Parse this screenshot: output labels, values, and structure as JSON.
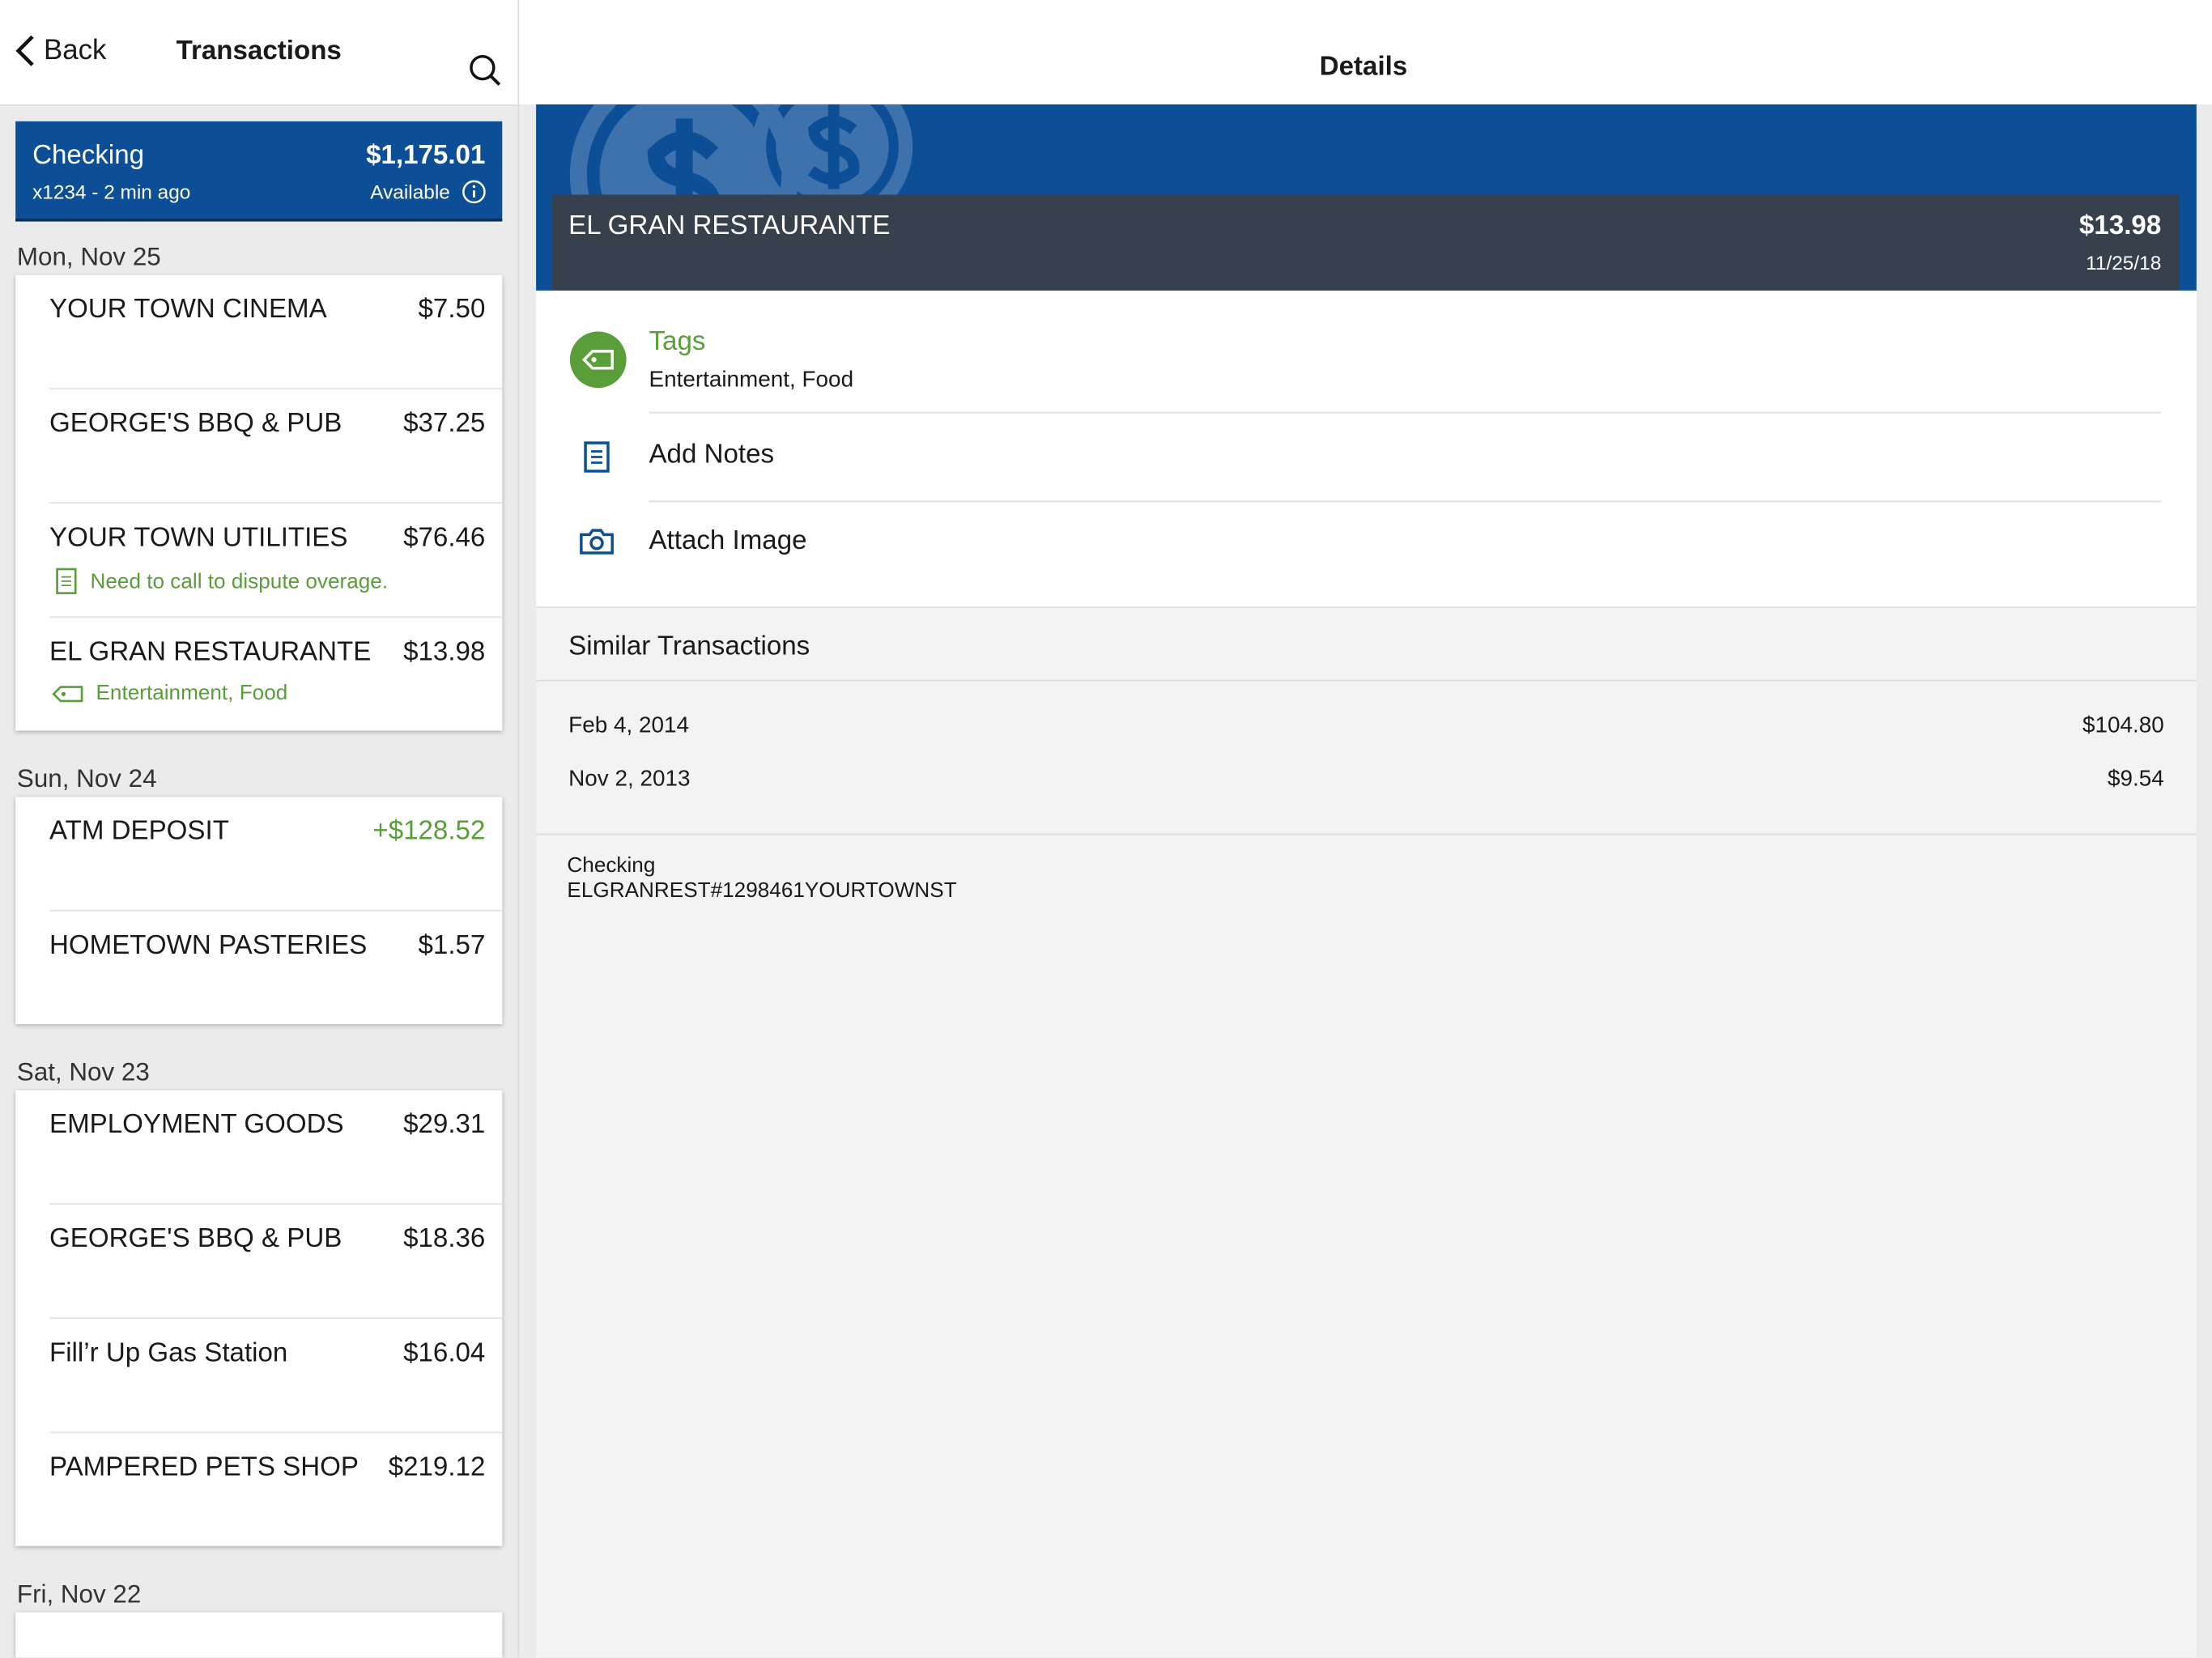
{
  "header": {
    "back": "Back",
    "title": "Transactions",
    "details_title": "Details"
  },
  "account": {
    "name": "Checking",
    "balance": "$1,175.01",
    "sub": "x1234 - 2 min ago",
    "available": "Available"
  },
  "transactions": {
    "groups": [
      {
        "date": "Mon, Nov 25",
        "items": [
          {
            "name": "YOUR TOWN CINEMA",
            "amount": "$7.50"
          },
          {
            "name": "GEORGE'S BBQ & PUB",
            "amount": "$37.25"
          },
          {
            "name": "YOUR TOWN UTILITIES",
            "amount": "$76.46",
            "note": "Need to call to dispute overage."
          },
          {
            "name": "EL GRAN RESTAURANTE",
            "amount": "$13.98",
            "tags": "Entertainment, Food"
          }
        ]
      },
      {
        "date": "Sun, Nov 24",
        "items": [
          {
            "name": "ATM DEPOSIT",
            "amount": "+$128.52"
          },
          {
            "name": "HOMETOWN PASTERIES",
            "amount": "$1.57"
          }
        ]
      },
      {
        "date": "Sat, Nov 23",
        "items": [
          {
            "name": "EMPLOYMENT GOODS",
            "amount": "$29.31"
          },
          {
            "name": "GEORGE'S BBQ & PUB",
            "amount": "$18.36"
          },
          {
            "name": "Fill’r Up Gas Station",
            "amount": "$16.04"
          },
          {
            "name": "PAMPERED PETS SHOP",
            "amount": "$219.12"
          }
        ]
      },
      {
        "date": "Fri, Nov 22",
        "items": []
      }
    ]
  },
  "details": {
    "merchant": "EL GRAN RESTAURANTE",
    "amount": "$13.98",
    "date": "11/25/18",
    "tags_label": "Tags",
    "tags_value": "Entertainment, Food",
    "add_notes": "Add Notes",
    "attach_image": "Attach Image",
    "similar": {
      "title": "Similar Transactions",
      "rows": [
        {
          "date": "Feb 4, 2014",
          "amount": "$104.80"
        },
        {
          "date": "Nov 2, 2013",
          "amount": "$9.54"
        }
      ]
    },
    "footer": [
      "Checking",
      "ELGRANREST#1298461YOURTOWNST"
    ]
  }
}
